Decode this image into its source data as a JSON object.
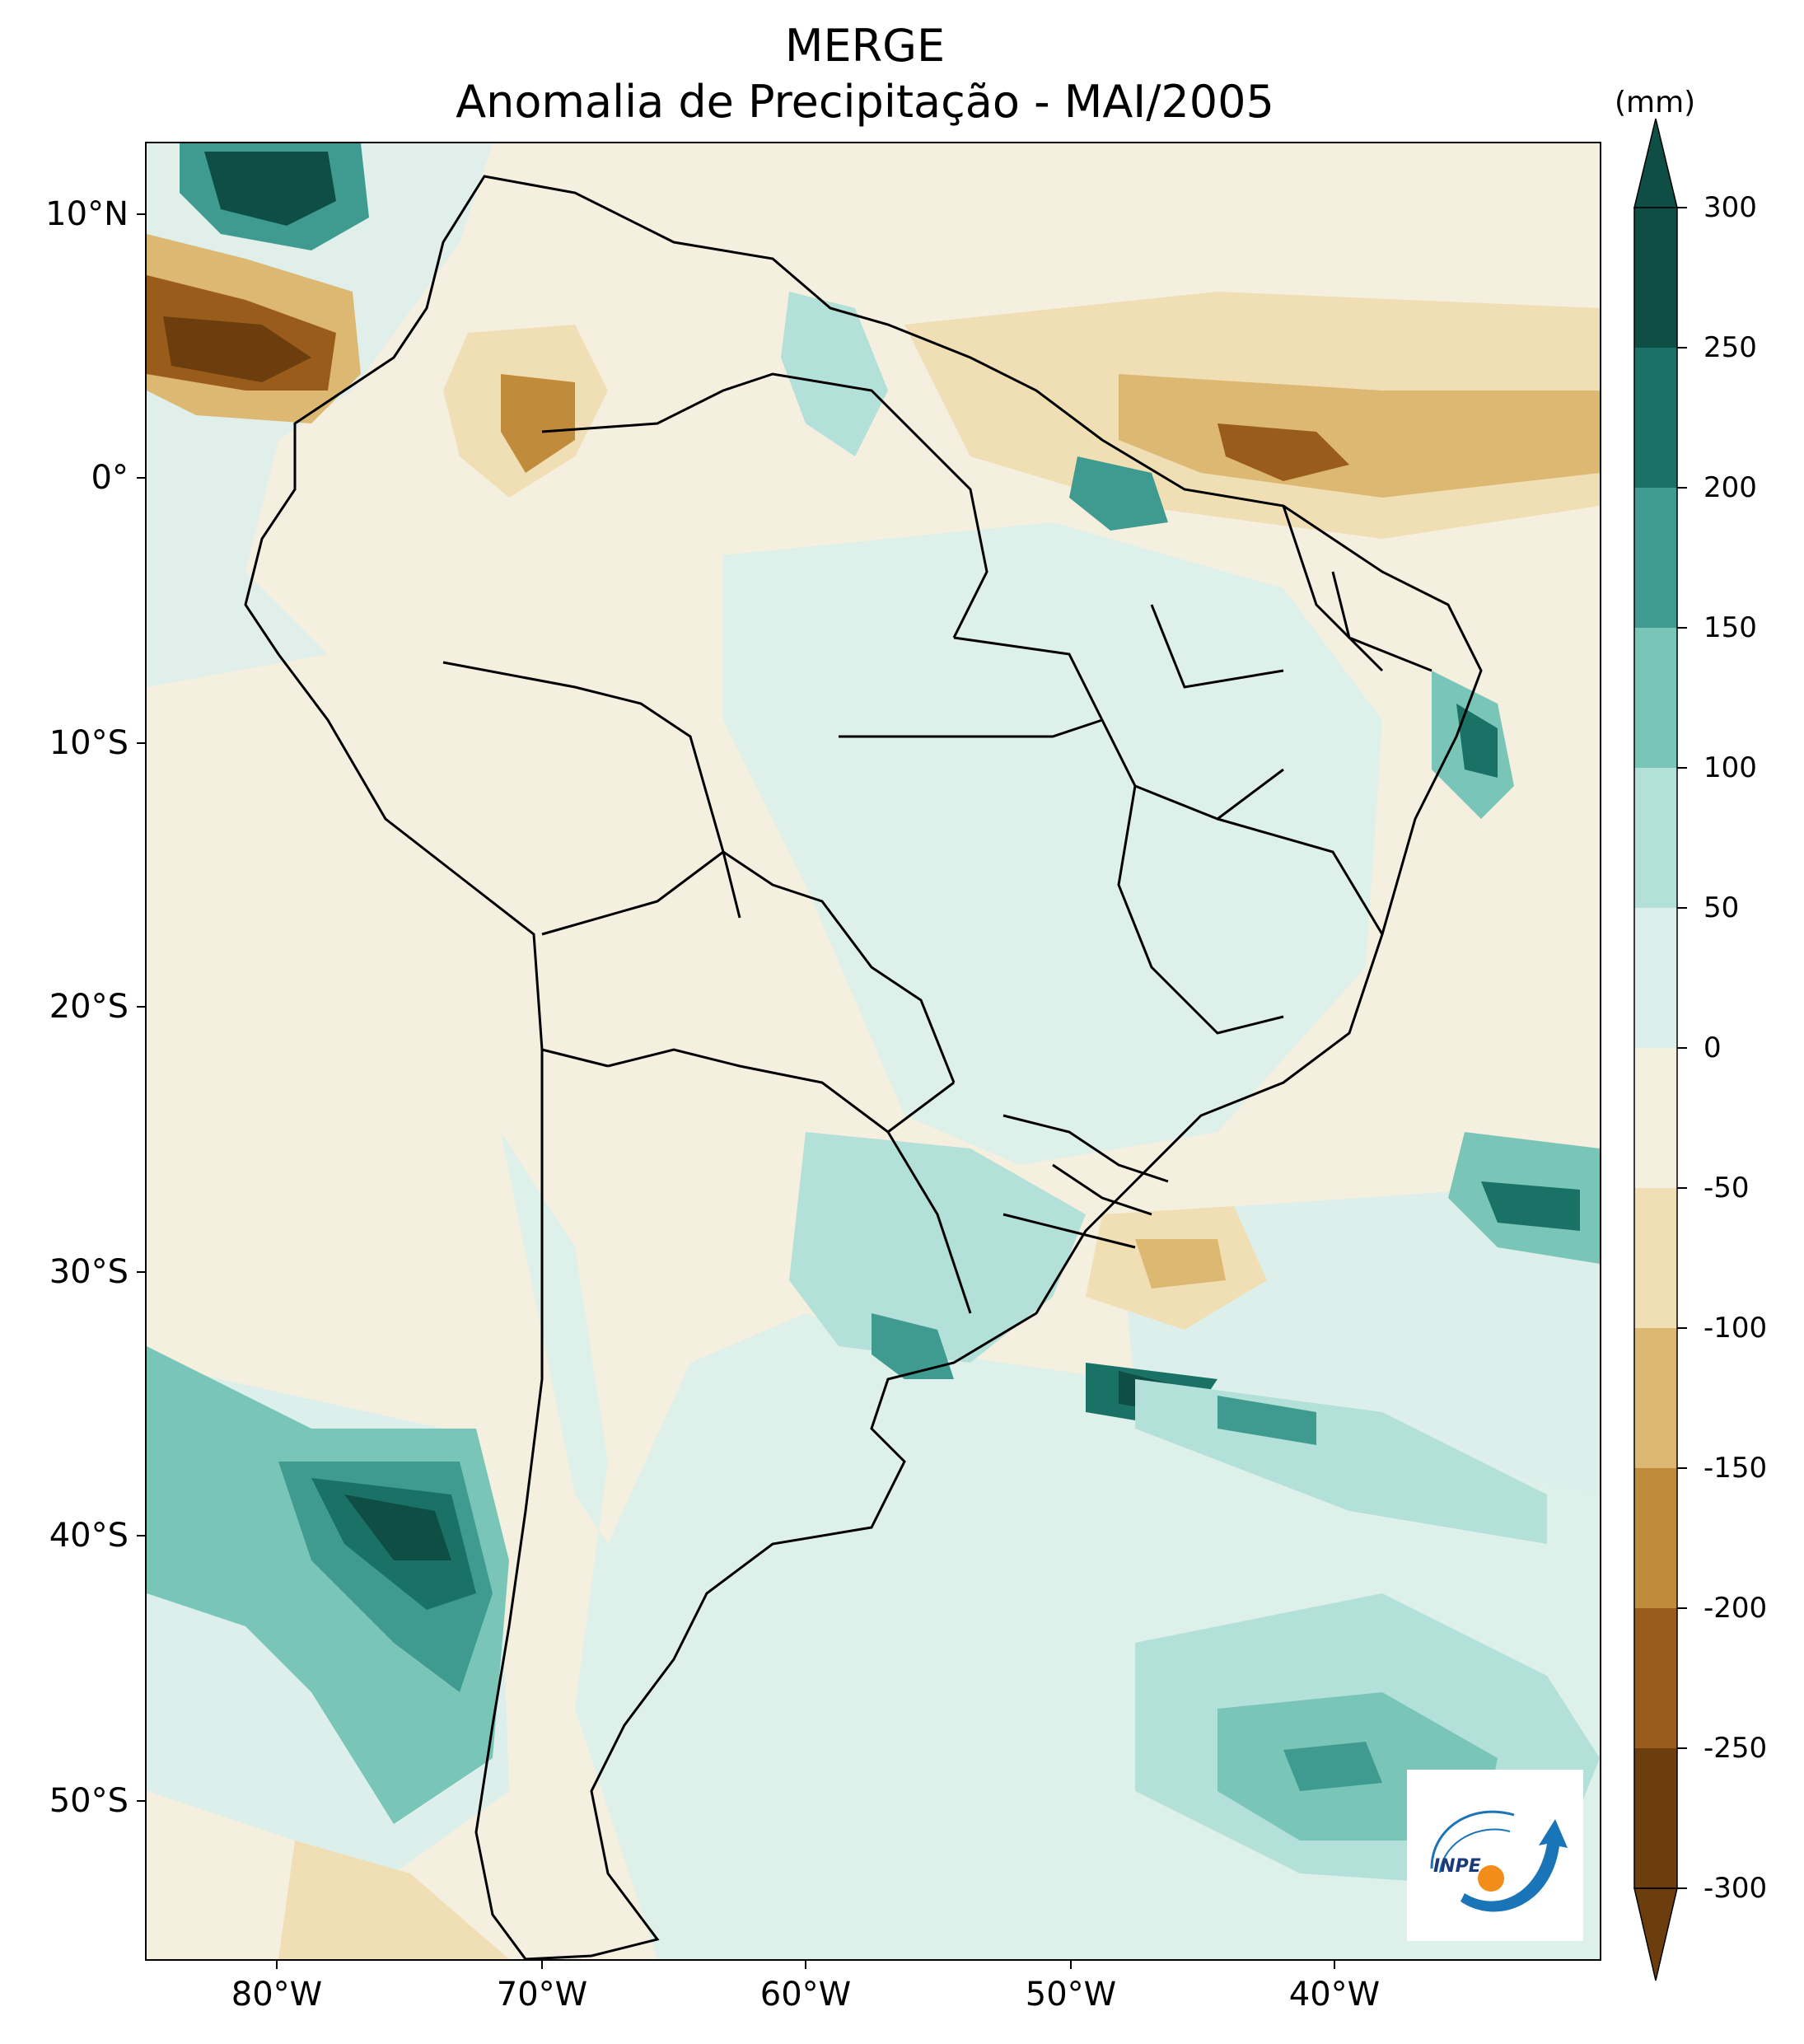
{
  "title": {
    "line1": "MERGE",
    "line2": "Anomalia de Precipitação - MAI/2005"
  },
  "map": {
    "lat_labels": [
      "10°N",
      "0°",
      "10°S",
      "20°S",
      "30°S",
      "40°S",
      "50°S"
    ],
    "lon_labels": [
      "80°W",
      "70°W",
      "60°W",
      "50°W",
      "40°W"
    ],
    "variable": "precipitation anomaly",
    "extent": {
      "lon_min": -85,
      "lon_max": -30,
      "lat_min": -56,
      "lat_max": 12.5
    }
  },
  "colorbar": {
    "unit": "(mm)",
    "levels": [
      "300",
      "250",
      "200",
      "150",
      "100",
      "50",
      "0",
      "-50",
      "-100",
      "-150",
      "-200",
      "-250",
      "-300"
    ],
    "colors": [
      "#0f4e45",
      "#1a7266",
      "#3f9b90",
      "#79c6b8",
      "#b3e0d8",
      "#dcefeb",
      "#f5efe0",
      "#f0dfb4",
      "#dcb873",
      "#c08b3a",
      "#9a5c1a",
      "#6d3e0d"
    ],
    "extend": "both"
  },
  "logo": {
    "text": "INPE",
    "accent_blue": "#1a74b8",
    "accent_orange": "#f28c1a"
  }
}
